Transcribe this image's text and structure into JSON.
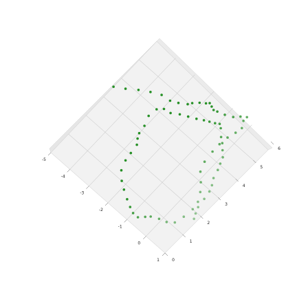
{
  "chart_data": {
    "type": "scatter",
    "title": "",
    "xlabel": "",
    "ylabel": "",
    "zlabel": "",
    "projection": "3d",
    "view": "top-down, rotated 45 degrees",
    "grid": true,
    "x_ticks": [
      "-5",
      "-4",
      "-3",
      "-2",
      "-1",
      "0",
      "1"
    ],
    "y_ticks": [
      "0",
      "1",
      "2",
      "3",
      "4",
      "5",
      "6"
    ],
    "xlim": [
      -5,
      1
    ],
    "ylim": [
      0,
      6
    ],
    "colors": {
      "points": "#1a8a1a",
      "pane": "#f2f2f2",
      "grid": "#cfcfcf"
    },
    "series": [
      {
        "points": [
          [
            -5.0,
            3.55
          ],
          [
            -4.6,
            3.8
          ],
          [
            -4.2,
            4.1
          ],
          [
            -3.8,
            4.35
          ],
          [
            -3.4,
            4.55
          ],
          [
            -3.0,
            4.6
          ],
          [
            -2.7,
            4.75
          ],
          [
            -2.4,
            4.95
          ],
          [
            -2.3,
            5.1
          ],
          [
            -2.1,
            5.3
          ],
          [
            -1.9,
            5.45
          ],
          [
            -1.8,
            5.55
          ],
          [
            -1.65,
            5.5
          ],
          [
            -1.5,
            5.45
          ],
          [
            -1.35,
            5.5
          ],
          [
            -1.05,
            5.6
          ],
          [
            -0.75,
            5.75
          ],
          [
            -0.55,
            5.95
          ],
          [
            -0.35,
            6.1
          ],
          [
            -0.35,
            5.9
          ],
          [
            -0.2,
            5.65
          ],
          [
            -0.25,
            5.35
          ],
          [
            -0.35,
            5.0
          ],
          [
            -0.4,
            4.6
          ],
          [
            -0.4,
            4.2
          ],
          [
            -0.35,
            3.7
          ],
          [
            -0.2,
            3.3
          ],
          [
            0.1,
            3.0
          ],
          [
            0.35,
            2.7
          ],
          [
            0.55,
            2.35
          ],
          [
            0.6,
            2.0
          ],
          [
            0.55,
            1.55
          ],
          [
            0.45,
            1.15
          ],
          [
            0.2,
            0.95
          ],
          [
            -0.1,
            0.85
          ],
          [
            -0.4,
            0.7
          ],
          [
            -0.55,
            0.55
          ],
          [
            -0.75,
            0.35
          ],
          [
            -1.0,
            0.35
          ],
          [
            -1.25,
            0.45
          ],
          [
            -1.55,
            0.6
          ],
          [
            -1.9,
            0.8
          ],
          [
            -2.2,
            1.0
          ],
          [
            -2.5,
            1.3
          ],
          [
            -2.65,
            1.7
          ],
          [
            -2.7,
            2.05
          ],
          [
            -2.75,
            2.45
          ],
          [
            -2.9,
            2.65
          ],
          [
            -3.0,
            2.85
          ],
          [
            -3.05,
            3.2
          ],
          [
            -3.2,
            3.6
          ],
          [
            -3.15,
            4.0
          ],
          [
            -2.95,
            4.2
          ],
          [
            -2.65,
            4.25
          ],
          [
            -2.35,
            4.45
          ],
          [
            -2.05,
            4.6
          ],
          [
            -1.75,
            4.75
          ],
          [
            -1.5,
            4.9
          ],
          [
            -1.3,
            5.0
          ],
          [
            -1.1,
            5.1
          ],
          [
            -0.95,
            5.2
          ],
          [
            -0.8,
            5.1
          ],
          [
            -0.55,
            4.85
          ],
          [
            -0.35,
            4.7
          ],
          [
            -0.15,
            4.5
          ],
          [
            0.05,
            4.3
          ],
          [
            0.15,
            4.05
          ],
          [
            0.25,
            3.8
          ],
          [
            0.35,
            3.45
          ],
          [
            0.5,
            3.2
          ],
          [
            0.6,
            2.95
          ],
          [
            0.65,
            2.6
          ],
          [
            0.7,
            2.2
          ],
          [
            0.8,
            1.95
          ],
          [
            0.9,
            1.75
          ]
        ]
      }
    ]
  }
}
